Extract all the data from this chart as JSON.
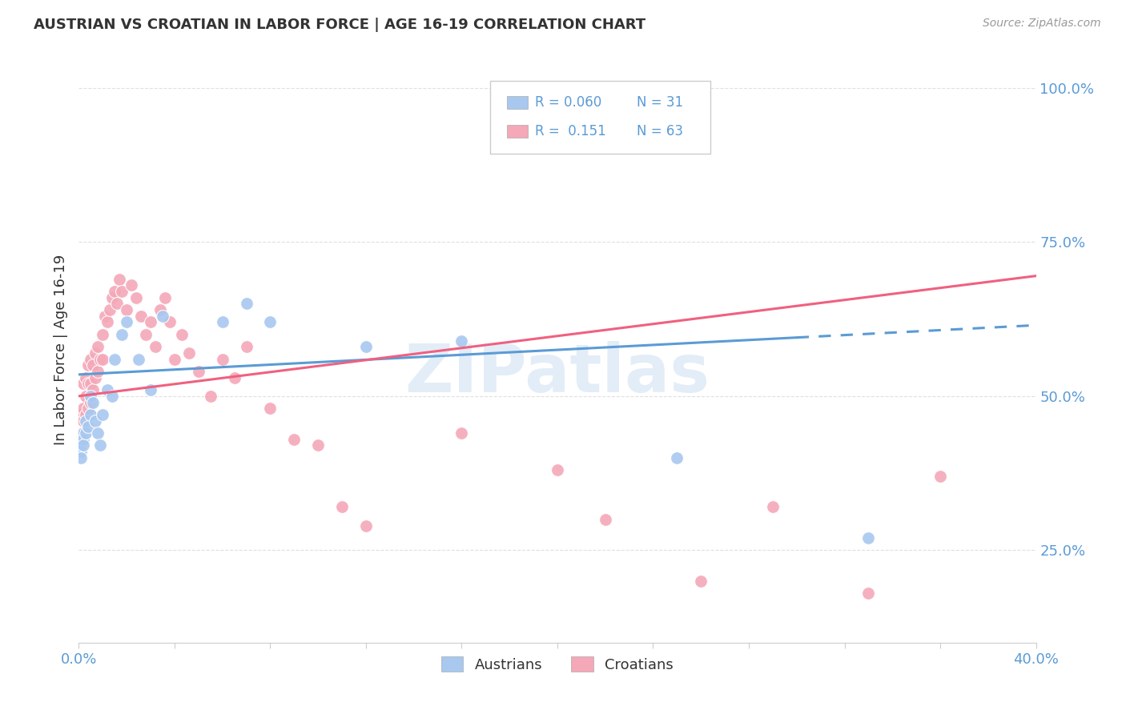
{
  "title": "AUSTRIAN VS CROATIAN IN LABOR FORCE | AGE 16-19 CORRELATION CHART",
  "source": "Source: ZipAtlas.com",
  "ylabel": "In Labor Force | Age 16-19",
  "x_min": 0.0,
  "x_max": 0.4,
  "y_min": 0.1,
  "y_max": 1.05,
  "y_ticks": [
    0.25,
    0.5,
    0.75,
    1.0
  ],
  "y_tick_labels": [
    "25.0%",
    "50.0%",
    "75.0%",
    "100.0%"
  ],
  "austrian_color": "#A8C8F0",
  "croatian_color": "#F4A8B8",
  "trendline_austrian_color": "#5B9BD5",
  "trendline_croatian_color": "#F06080",
  "background_color": "#FFFFFF",
  "grid_color": "#E0E0E0",
  "R_austrian": 0.06,
  "N_austrian": 31,
  "R_croatian": 0.151,
  "N_croatian": 63,
  "watermark": "ZIPatlas",
  "aus_x": [
    0.001,
    0.001,
    0.001,
    0.002,
    0.002,
    0.002,
    0.003,
    0.003,
    0.004,
    0.005,
    0.005,
    0.006,
    0.007,
    0.008,
    0.009,
    0.01,
    0.012,
    0.014,
    0.015,
    0.018,
    0.02,
    0.025,
    0.03,
    0.035,
    0.06,
    0.07,
    0.08,
    0.12,
    0.16,
    0.25,
    0.33
  ],
  "aus_y": [
    0.43,
    0.41,
    0.4,
    0.44,
    0.43,
    0.42,
    0.46,
    0.44,
    0.45,
    0.5,
    0.47,
    0.49,
    0.46,
    0.44,
    0.42,
    0.47,
    0.51,
    0.5,
    0.56,
    0.6,
    0.62,
    0.56,
    0.51,
    0.63,
    0.62,
    0.65,
    0.62,
    0.58,
    0.59,
    0.4,
    0.27
  ],
  "cro_x": [
    0.001,
    0.001,
    0.001,
    0.002,
    0.002,
    0.002,
    0.002,
    0.003,
    0.003,
    0.003,
    0.004,
    0.004,
    0.004,
    0.005,
    0.005,
    0.005,
    0.006,
    0.006,
    0.007,
    0.007,
    0.008,
    0.008,
    0.009,
    0.01,
    0.01,
    0.011,
    0.012,
    0.013,
    0.014,
    0.015,
    0.016,
    0.017,
    0.018,
    0.02,
    0.022,
    0.024,
    0.026,
    0.028,
    0.03,
    0.032,
    0.034,
    0.036,
    0.038,
    0.04,
    0.043,
    0.046,
    0.05,
    0.055,
    0.06,
    0.065,
    0.07,
    0.08,
    0.09,
    0.1,
    0.11,
    0.12,
    0.16,
    0.2,
    0.22,
    0.26,
    0.29,
    0.33,
    0.36
  ],
  "cro_y": [
    0.44,
    0.47,
    0.43,
    0.52,
    0.48,
    0.46,
    0.44,
    0.53,
    0.5,
    0.47,
    0.55,
    0.52,
    0.48,
    0.56,
    0.52,
    0.49,
    0.55,
    0.51,
    0.57,
    0.53,
    0.58,
    0.54,
    0.56,
    0.6,
    0.56,
    0.63,
    0.62,
    0.64,
    0.66,
    0.67,
    0.65,
    0.69,
    0.67,
    0.64,
    0.68,
    0.66,
    0.63,
    0.6,
    0.62,
    0.58,
    0.64,
    0.66,
    0.62,
    0.56,
    0.6,
    0.57,
    0.54,
    0.5,
    0.56,
    0.53,
    0.58,
    0.48,
    0.43,
    0.42,
    0.32,
    0.29,
    0.44,
    0.38,
    0.3,
    0.2,
    0.32,
    0.18,
    0.37
  ]
}
